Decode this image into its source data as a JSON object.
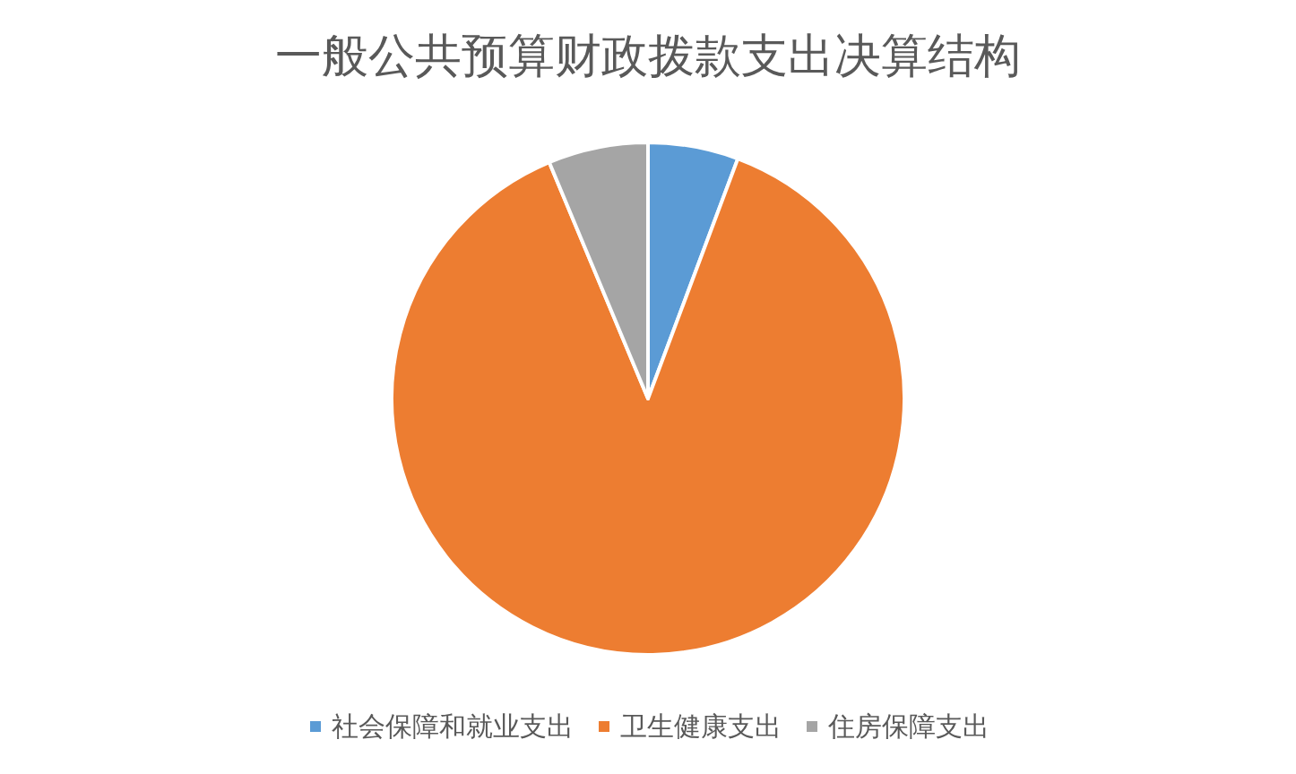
{
  "chart_data": {
    "type": "pie",
    "title": "一般公共预算财政拨款支出决算结构",
    "categories": [
      "社会保障和就业支出",
      "卫生健康支出",
      "住房保障支出"
    ],
    "values": [
      5.7,
      88.0,
      6.3
    ],
    "colors": [
      "#5b9bd5",
      "#ed7d31",
      "#a5a5a5"
    ],
    "legend": "bottom"
  }
}
